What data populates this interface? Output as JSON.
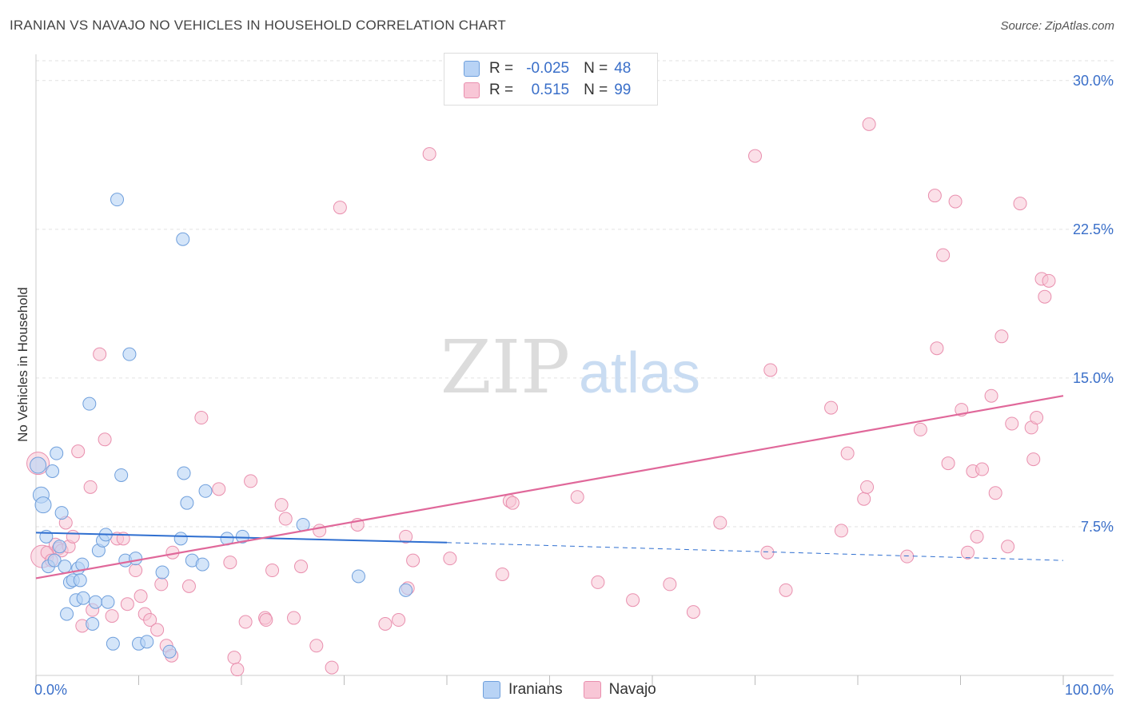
{
  "header": {
    "title": "IRANIAN VS NAVAJO NO VEHICLES IN HOUSEHOLD CORRELATION CHART",
    "source": "Source: ZipAtlas.com"
  },
  "watermark": {
    "zip": "ZIP",
    "atlas": "atlas"
  },
  "legend_top": {
    "rows": [
      {
        "r_label": "R =",
        "r_value": "-0.025",
        "n_label": "N =",
        "n_value": "48"
      },
      {
        "r_label": "R =",
        "r_value": "0.515",
        "n_label": "N =",
        "n_value": "99"
      }
    ]
  },
  "legend_bottom": {
    "items": [
      "Iranians",
      "Navajo"
    ]
  },
  "colors": {
    "iranian_fill": "#b8d3f5",
    "iranian_stroke": "#6f9fdc",
    "iranian_line": "#2f6fd0",
    "navajo_fill": "#f8c6d6",
    "navajo_stroke": "#e98fae",
    "navajo_line": "#e0689a",
    "tick_label": "#3a6fc9"
  },
  "chart_data": {
    "type": "scatter",
    "title": "IRANIAN VS NAVAJO NO VEHICLES IN HOUSEHOLD CORRELATION CHART",
    "xlabel": "",
    "ylabel": "No Vehicles in Household",
    "xlim": [
      0,
      100
    ],
    "ylim": [
      0,
      31
    ],
    "x_tick_labels": [
      "0.0%",
      "100.0%"
    ],
    "y_ticks": [
      7.5,
      15.0,
      22.5,
      30.0
    ],
    "y_tick_labels": [
      "7.5%",
      "15.0%",
      "22.5%",
      "30.0%"
    ],
    "series": [
      {
        "name": "Iranians",
        "R": -0.025,
        "N": 48,
        "trend": {
          "x0": 0,
          "y0": 7.2,
          "x1": 40,
          "y1": 6.7,
          "dash_to_x": 100,
          "dash_to_y": 5.8
        },
        "points": [
          [
            0.2,
            10.6
          ],
          [
            0.5,
            9.1
          ],
          [
            0.7,
            8.6
          ],
          [
            1.0,
            7.0
          ],
          [
            1.2,
            5.5
          ],
          [
            1.6,
            10.3
          ],
          [
            1.8,
            5.8
          ],
          [
            2.0,
            11.2
          ],
          [
            2.3,
            6.5
          ],
          [
            2.5,
            8.2
          ],
          [
            2.8,
            5.5
          ],
          [
            3.0,
            3.1
          ],
          [
            3.3,
            4.7
          ],
          [
            3.6,
            4.8
          ],
          [
            3.9,
            3.8
          ],
          [
            4.1,
            5.4
          ],
          [
            4.3,
            4.8
          ],
          [
            4.6,
            3.9
          ],
          [
            5.2,
            13.7
          ],
          [
            5.5,
            2.6
          ],
          [
            5.8,
            3.7
          ],
          [
            6.1,
            6.3
          ],
          [
            6.5,
            6.8
          ],
          [
            6.8,
            7.1
          ],
          [
            7.0,
            3.7
          ],
          [
            7.5,
            1.6
          ],
          [
            7.9,
            24.0
          ],
          [
            8.3,
            10.1
          ],
          [
            8.7,
            5.8
          ],
          [
            9.1,
            16.2
          ],
          [
            9.7,
            5.9
          ],
          [
            10.0,
            1.6
          ],
          [
            10.8,
            1.7
          ],
          [
            12.3,
            5.2
          ],
          [
            13.0,
            1.2
          ],
          [
            14.1,
            6.9
          ],
          [
            14.4,
            10.2
          ],
          [
            14.7,
            8.7
          ],
          [
            14.3,
            22.0
          ],
          [
            15.2,
            5.8
          ],
          [
            16.2,
            5.6
          ],
          [
            16.5,
            9.3
          ],
          [
            18.6,
            6.9
          ],
          [
            20.1,
            7.0
          ],
          [
            26.0,
            7.6
          ],
          [
            31.4,
            5.0
          ],
          [
            36.0,
            4.3
          ],
          [
            4.5,
            5.6
          ]
        ]
      },
      {
        "name": "Navajo",
        "R": 0.515,
        "N": 99,
        "trend": {
          "x0": 0,
          "y0": 4.9,
          "x1": 100,
          "y1": 14.1
        },
        "points": [
          [
            0.2,
            10.7
          ],
          [
            0.6,
            6.0
          ],
          [
            1.1,
            6.2
          ],
          [
            1.5,
            5.8
          ],
          [
            1.9,
            6.6
          ],
          [
            2.2,
            6.4
          ],
          [
            2.5,
            6.3
          ],
          [
            2.9,
            7.7
          ],
          [
            3.2,
            6.5
          ],
          [
            3.6,
            7.0
          ],
          [
            4.1,
            11.3
          ],
          [
            4.5,
            2.5
          ],
          [
            5.3,
            9.5
          ],
          [
            5.5,
            3.3
          ],
          [
            6.2,
            16.2
          ],
          [
            6.7,
            11.9
          ],
          [
            7.4,
            3.0
          ],
          [
            7.9,
            6.9
          ],
          [
            8.5,
            6.9
          ],
          [
            8.9,
            3.6
          ],
          [
            9.7,
            5.3
          ],
          [
            10.2,
            4.0
          ],
          [
            10.6,
            3.1
          ],
          [
            11.1,
            2.8
          ],
          [
            11.8,
            2.3
          ],
          [
            12.2,
            4.6
          ],
          [
            12.7,
            1.5
          ],
          [
            13.2,
            1.0
          ],
          [
            13.3,
            6.2
          ],
          [
            14.9,
            4.5
          ],
          [
            16.1,
            13.0
          ],
          [
            17.8,
            9.4
          ],
          [
            18.9,
            5.7
          ],
          [
            19.3,
            0.9
          ],
          [
            19.6,
            0.3
          ],
          [
            20.4,
            2.7
          ],
          [
            20.9,
            9.8
          ],
          [
            22.3,
            2.9
          ],
          [
            22.4,
            2.8
          ],
          [
            23.0,
            5.3
          ],
          [
            23.9,
            8.6
          ],
          [
            24.3,
            7.9
          ],
          [
            25.1,
            2.9
          ],
          [
            25.8,
            5.5
          ],
          [
            27.3,
            1.5
          ],
          [
            27.6,
            7.3
          ],
          [
            28.8,
            0.4
          ],
          [
            29.6,
            23.6
          ],
          [
            31.3,
            7.6
          ],
          [
            34.0,
            2.6
          ],
          [
            35.3,
            2.8
          ],
          [
            36.0,
            7.0
          ],
          [
            36.2,
            4.4
          ],
          [
            36.7,
            5.8
          ],
          [
            38.3,
            26.3
          ],
          [
            40.3,
            5.9
          ],
          [
            45.4,
            5.1
          ],
          [
            46.1,
            8.8
          ],
          [
            46.4,
            8.7
          ],
          [
            52.7,
            9.0
          ],
          [
            54.7,
            4.7
          ],
          [
            58.1,
            3.8
          ],
          [
            61.7,
            4.6
          ],
          [
            64.0,
            3.2
          ],
          [
            66.6,
            7.7
          ],
          [
            70.0,
            26.2
          ],
          [
            71.2,
            6.2
          ],
          [
            71.5,
            15.4
          ],
          [
            73.0,
            4.3
          ],
          [
            77.4,
            13.5
          ],
          [
            78.4,
            7.3
          ],
          [
            79.0,
            11.2
          ],
          [
            80.6,
            8.9
          ],
          [
            80.9,
            9.5
          ],
          [
            81.1,
            27.8
          ],
          [
            84.8,
            6.0
          ],
          [
            86.1,
            12.4
          ],
          [
            87.5,
            24.2
          ],
          [
            87.7,
            16.5
          ],
          [
            88.3,
            21.2
          ],
          [
            88.8,
            10.7
          ],
          [
            89.5,
            23.9
          ],
          [
            90.1,
            13.4
          ],
          [
            90.7,
            6.2
          ],
          [
            91.2,
            10.3
          ],
          [
            91.6,
            7.0
          ],
          [
            92.1,
            10.4
          ],
          [
            93.0,
            14.1
          ],
          [
            93.4,
            9.2
          ],
          [
            94.0,
            17.1
          ],
          [
            94.6,
            6.5
          ],
          [
            95.0,
            12.7
          ],
          [
            95.8,
            23.8
          ],
          [
            96.9,
            12.5
          ],
          [
            97.1,
            10.9
          ],
          [
            97.4,
            13.0
          ],
          [
            97.9,
            20.0
          ],
          [
            98.2,
            19.1
          ],
          [
            98.6,
            19.9
          ]
        ]
      }
    ]
  }
}
